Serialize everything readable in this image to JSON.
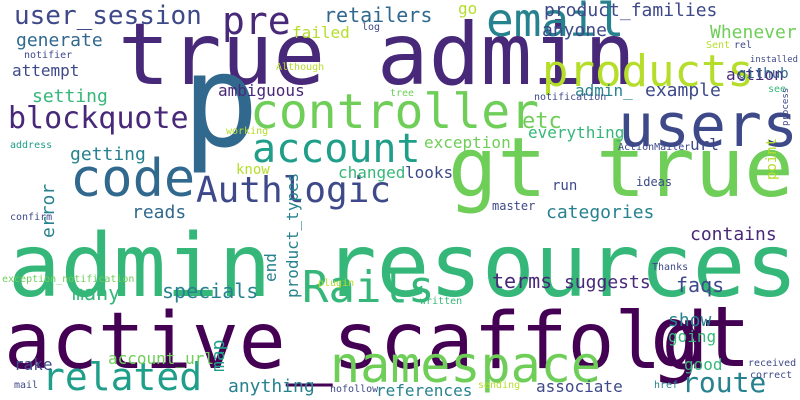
{
  "colors": {
    "background": "#ffffff",
    "palette": [
      "#440154",
      "#482878",
      "#3e4989",
      "#31688e",
      "#26828e",
      "#1f9e89",
      "#35b779",
      "#6ece58",
      "#b5de2b",
      "#fde725"
    ]
  },
  "words": [
    {
      "text": "admin resources",
      "color": "#35b779"
    },
    {
      "text": "active_scaffold",
      "color": "#440154"
    },
    {
      "text": "true admin",
      "color": "#482878"
    },
    {
      "text": "gt true",
      "color": "#6ece58"
    },
    {
      "text": "p",
      "color": "#31688e"
    },
    {
      "text": "gt",
      "color": "#440154"
    },
    {
      "text": "users",
      "color": "#3e4989"
    },
    {
      "text": "namespace",
      "color": "#6ece58"
    },
    {
      "text": "controller",
      "color": "#6ece58"
    },
    {
      "text": "products",
      "color": "#b5de2b"
    },
    {
      "text": "email",
      "color": "#26828e"
    },
    {
      "text": "code",
      "color": "#31688e"
    },
    {
      "text": "account",
      "color": "#1f9e89"
    },
    {
      "text": "Authlogic",
      "color": "#3e4989"
    },
    {
      "text": "Rails",
      "color": "#35b779"
    },
    {
      "text": "related",
      "color": "#1f9e89"
    },
    {
      "text": "pre",
      "color": "#482878"
    },
    {
      "text": "user_session",
      "color": "#3e4989"
    },
    {
      "text": "blockquote",
      "color": "#482878"
    },
    {
      "text": "route",
      "color": "#26828e"
    },
    {
      "text": "retailers",
      "color": "#31688e"
    },
    {
      "text": "product_families",
      "color": "#3e4989"
    },
    {
      "text": "anyone",
      "color": "#3e4989"
    },
    {
      "text": "Whenever",
      "color": "#6ece58"
    },
    {
      "text": "generate",
      "color": "#31688e"
    },
    {
      "text": "attempt",
      "color": "#3e4989"
    },
    {
      "text": "setting",
      "color": "#35b779"
    },
    {
      "text": "ambiguous",
      "color": "#482878"
    },
    {
      "text": "admin_",
      "color": "#26828e"
    },
    {
      "text": "example",
      "color": "#3e4989"
    },
    {
      "text": "etc",
      "color": "#6ece58"
    },
    {
      "text": "url",
      "color": "#3e4989"
    },
    {
      "text": "everything",
      "color": "#35b779"
    },
    {
      "text": "exception",
      "color": "#6ece58"
    },
    {
      "text": "getting",
      "color": "#26828e"
    },
    {
      "text": "error",
      "color": "#26828e"
    },
    {
      "text": "changed",
      "color": "#35b779"
    },
    {
      "text": "looks",
      "color": "#3e4989"
    },
    {
      "text": "categories",
      "color": "#26828e"
    },
    {
      "text": "contains",
      "color": "#482878"
    },
    {
      "text": "reads",
      "color": "#31688e"
    },
    {
      "text": "product_types",
      "color": "#26828e"
    },
    {
      "text": "end",
      "color": "#26828e"
    },
    {
      "text": "terms",
      "color": "#482878"
    },
    {
      "text": "suggests",
      "color": "#482878"
    },
    {
      "text": "specials",
      "color": "#26828e"
    },
    {
      "text": "many",
      "color": "#35b779"
    },
    {
      "text": "faqs",
      "color": "#3e4989"
    },
    {
      "text": "show",
      "color": "#26828e"
    },
    {
      "text": "going",
      "color": "#35b779"
    },
    {
      "text": "rake",
      "color": "#3e4989"
    },
    {
      "text": "account_url",
      "color": "#6ece58"
    },
    {
      "text": "map",
      "color": "#1f9e89"
    },
    {
      "text": "anything",
      "color": "#26828e"
    },
    {
      "text": "references",
      "color": "#26828e"
    },
    {
      "text": "associate",
      "color": "#3e4989"
    },
    {
      "text": "good",
      "color": "#35b779"
    },
    {
      "text": "run",
      "color": "#3e4989"
    },
    {
      "text": "master",
      "color": "#3e4989"
    },
    {
      "text": "action",
      "color": "#482878"
    },
    {
      "text": "github",
      "color": "#31688e"
    },
    {
      "text": "failed",
      "color": "#b5de2b"
    },
    {
      "text": "go",
      "color": "#b5de2b"
    },
    {
      "text": "know",
      "color": "#b5de2b"
    },
    {
      "text": "point",
      "color": "#b5de2b"
    },
    {
      "text": "ideas",
      "color": "#3e4989"
    },
    {
      "text": "tree",
      "color": "#6ece58"
    },
    {
      "text": "log",
      "color": "#3e4989"
    },
    {
      "text": "notifier",
      "color": "#3e4989"
    },
    {
      "text": "Although",
      "color": "#b5de2b"
    },
    {
      "text": "notification",
      "color": "#3e4989"
    },
    {
      "text": "Sent",
      "color": "#b5de2b"
    },
    {
      "text": "rel",
      "color": "#3e4989"
    },
    {
      "text": "installed",
      "color": "#3e4989"
    },
    {
      "text": "see",
      "color": "#35b779"
    },
    {
      "text": "process",
      "color": "#3e4989"
    },
    {
      "text": "address",
      "color": "#1f9e89"
    },
    {
      "text": "working",
      "color": "#b5de2b"
    },
    {
      "text": "ActionMailer",
      "color": "#3e4989"
    },
    {
      "text": "confirm",
      "color": "#3e4989"
    },
    {
      "text": "exception_notification",
      "color": "#6ece58"
    },
    {
      "text": "plugin",
      "color": "#b5de2b"
    },
    {
      "text": "Thanks",
      "color": "#3e4989"
    },
    {
      "text": "written",
      "color": "#35b779"
    },
    {
      "text": "mail",
      "color": "#3e4989"
    },
    {
      "text": "nofollow",
      "color": "#3e4989"
    },
    {
      "text": "sending",
      "color": "#b5de2b"
    },
    {
      "text": "href",
      "color": "#26828e"
    },
    {
      "text": "received",
      "color": "#3e4989"
    },
    {
      "text": "correct",
      "color": "#3e4989"
    }
  ]
}
